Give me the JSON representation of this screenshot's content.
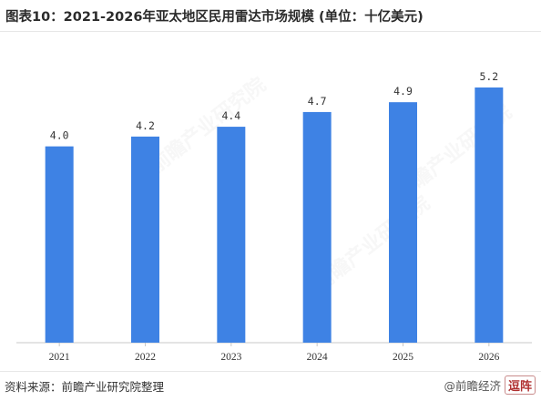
{
  "title": "图表10：2021-2026年亚太地区民用雷达市场规模 (单位：十亿美元)",
  "footer": {
    "source": "资料来源：前瞻产业研究院整理",
    "attribution": "@前瞻经济",
    "corner_mark": "逗阵"
  },
  "watermark": "前瞻产业研究院",
  "chart_data": {
    "type": "bar",
    "categories": [
      "2021",
      "2022",
      "2023",
      "2024",
      "2025",
      "2026"
    ],
    "values": [
      4.0,
      4.2,
      4.4,
      4.7,
      4.9,
      5.2
    ],
    "value_labels": [
      "4.0",
      "4.2",
      "4.4",
      "4.7",
      "4.9",
      "5.2"
    ],
    "title": "图表10：2021-2026年亚太地区民用雷达市场规模 (单位：十亿美元)",
    "xlabel": "",
    "ylabel": "",
    "ylim": [
      0,
      5.6
    ],
    "grid": false,
    "legend": "none",
    "bar_color": "#3e82e4",
    "baseline_color": "#c8c8c8"
  }
}
